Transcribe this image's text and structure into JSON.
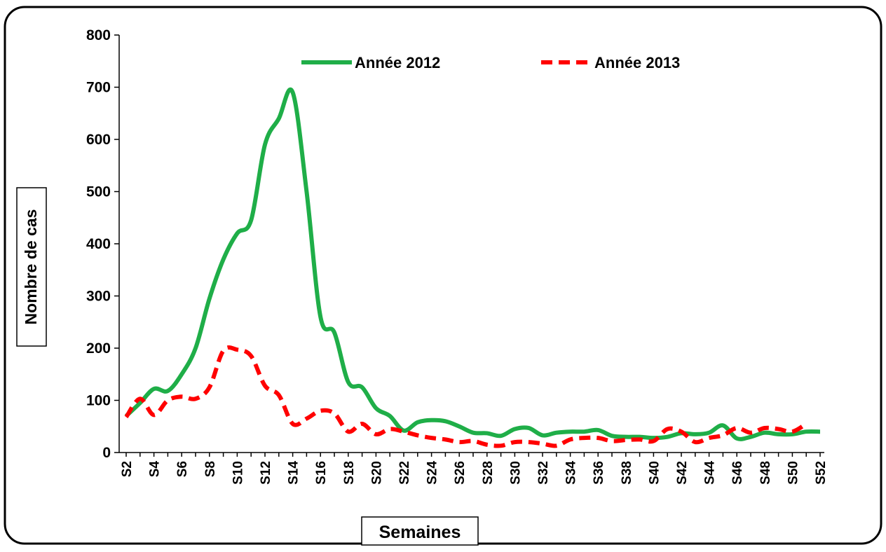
{
  "chart_data": {
    "type": "line",
    "x_label": "Semaines",
    "y_label": "Nombre de cas",
    "categories": [
      "S2",
      null,
      "S4",
      null,
      "S6",
      null,
      "S8",
      null,
      "S10",
      null,
      "S12",
      null,
      "S14",
      null,
      "S16",
      null,
      "S18",
      null,
      "S20",
      null,
      "S22",
      null,
      "S24",
      null,
      "S26",
      null,
      "S28",
      null,
      "S30",
      null,
      "S32",
      null,
      "S34",
      null,
      "S36",
      null,
      "S38",
      null,
      "S40",
      null,
      "S42",
      null,
      "S44",
      null,
      "S46",
      null,
      "S48",
      null,
      "S50",
      null,
      "S52"
    ],
    "series": [
      {
        "name": "Année 2012",
        "color": "#1fae48",
        "dash": false,
        "values": [
          70,
          95,
          122,
          118,
          150,
          200,
          295,
          370,
          420,
          445,
          590,
          640,
          690,
          500,
          260,
          230,
          135,
          125,
          85,
          70,
          42,
          58,
          62,
          60,
          50,
          38,
          37,
          32,
          45,
          47,
          33,
          38,
          40,
          40,
          43,
          32,
          30,
          30,
          28,
          30,
          37,
          35,
          38,
          52,
          27,
          30,
          38,
          35,
          35,
          40,
          40
        ]
      },
      {
        "name": "Année 2013",
        "color": "#ff0000",
        "dash": true,
        "values": [
          68,
          103,
          72,
          100,
          107,
          103,
          125,
          195,
          197,
          185,
          128,
          110,
          55,
          65,
          80,
          75,
          40,
          55,
          35,
          45,
          40,
          33,
          28,
          25,
          20,
          22,
          15,
          13,
          20,
          20,
          17,
          13,
          25,
          28,
          28,
          22,
          24,
          25,
          22,
          45,
          40,
          20,
          28,
          33,
          47,
          38,
          47,
          45,
          40,
          55,
          null
        ]
      }
    ],
    "ylim": [
      0,
      800
    ],
    "yticks": [
      0,
      100,
      200,
      300,
      400,
      500,
      600,
      700,
      800
    ],
    "grid": false,
    "legend": "top"
  }
}
